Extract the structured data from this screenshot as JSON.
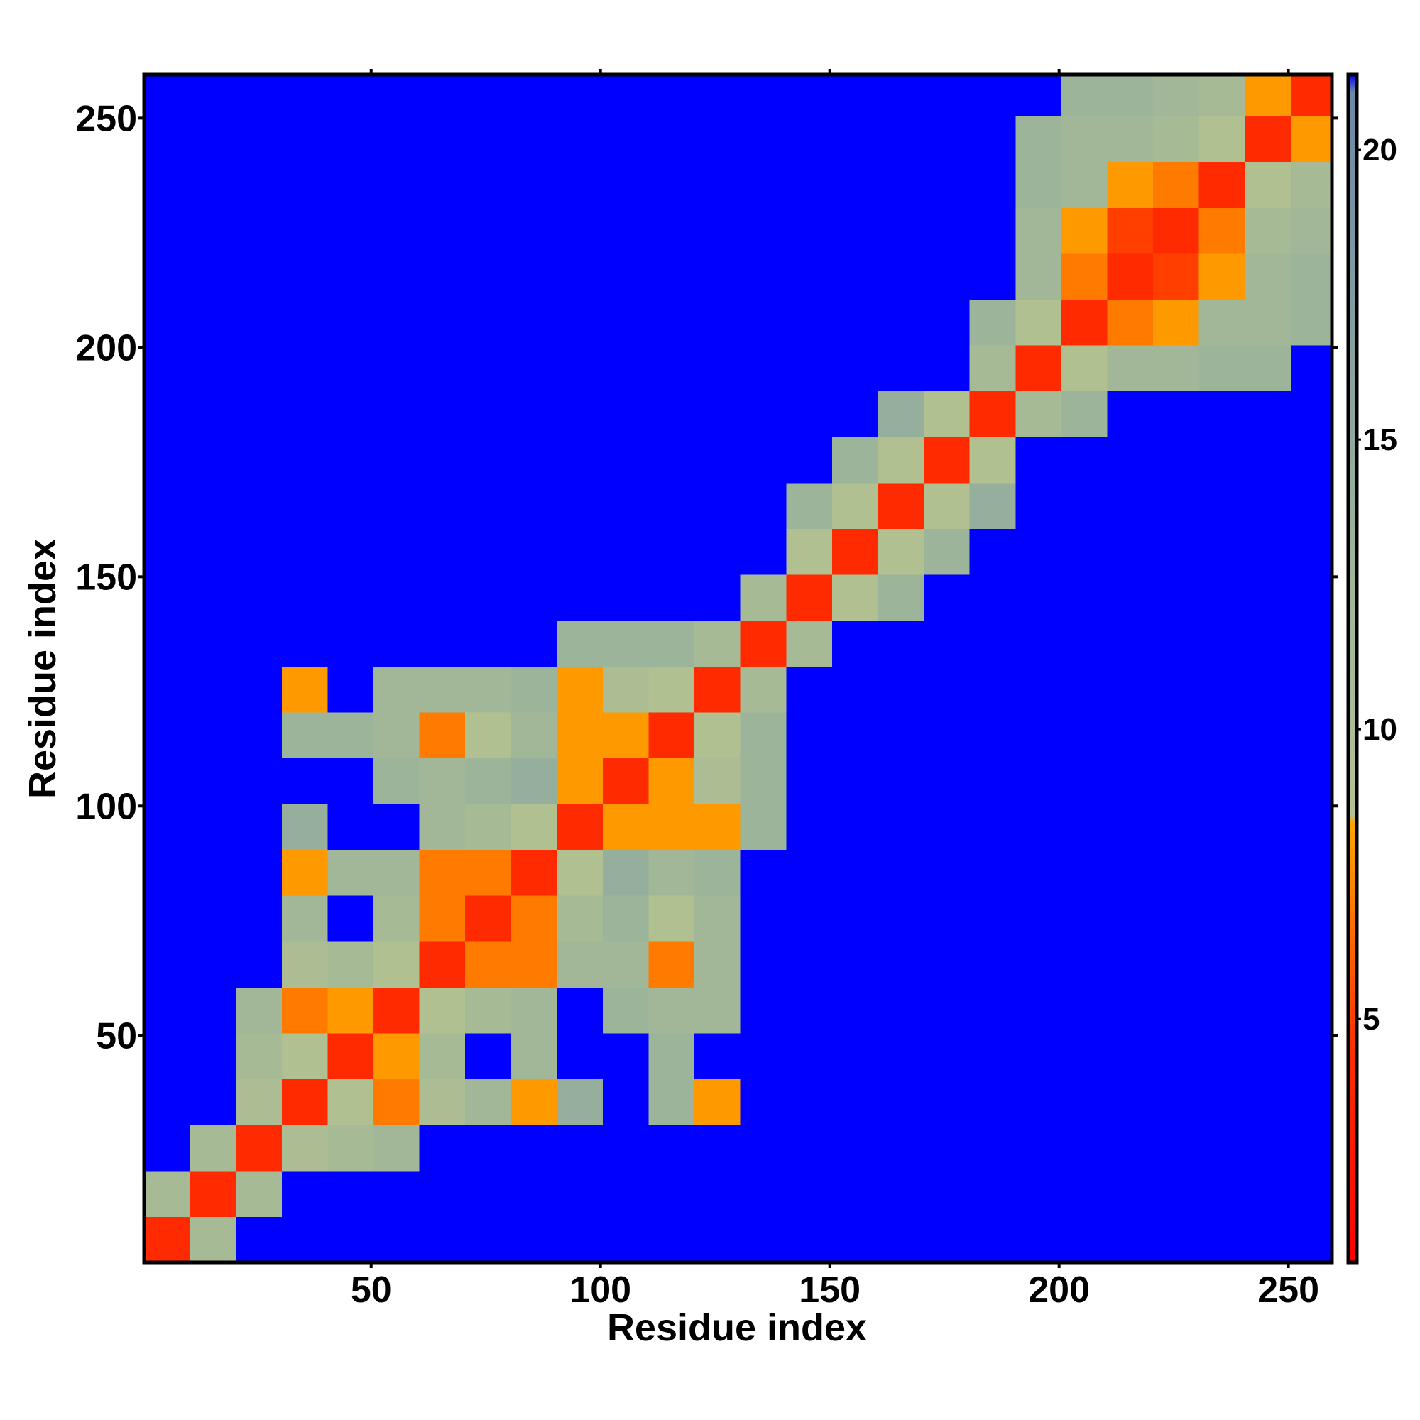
{
  "chart_data": {
    "type": "heatmap",
    "xlabel": "Residue index",
    "ylabel": "Residue index",
    "x_edges": [
      0.5,
      10.5,
      20.5,
      30.5,
      40.5,
      50.5,
      60.5,
      70.5,
      80.5,
      90.5,
      100.5,
      110.5,
      120.5,
      130.5,
      140.5,
      150.5,
      160.5,
      170.5,
      180.5,
      190.5,
      200.5,
      210.5,
      220.5,
      230.5,
      240.5,
      250.5,
      259.5
    ],
    "y_edges": [
      0.5,
      10.5,
      20.5,
      30.5,
      40.5,
      50.5,
      60.5,
      70.5,
      80.5,
      90.5,
      100.5,
      110.5,
      120.5,
      130.5,
      140.5,
      150.5,
      160.5,
      170.5,
      180.5,
      190.5,
      200.5,
      210.5,
      220.5,
      230.5,
      240.5,
      250.5,
      259.5
    ],
    "xlim": [
      0.5,
      259.5
    ],
    "ylim": [
      0.5,
      259.5
    ],
    "xticks": [
      50,
      100,
      150,
      200,
      250
    ],
    "yticks": [
      50,
      100,
      150,
      200,
      250
    ],
    "z": [
      [
        4,
        11,
        21.3,
        21.3,
        21.3,
        21.3,
        21.3,
        21.3,
        21.3,
        21.3,
        21.3,
        21.3,
        21.3,
        21.3,
        21.3,
        21.3,
        21.3,
        21.3,
        21.3,
        21.3,
        21.3,
        21.3,
        21.3,
        21.3,
        21.3,
        21.3
      ],
      [
        11,
        4,
        11,
        21.3,
        21.3,
        21.3,
        21.3,
        21.3,
        21.3,
        21.3,
        21.3,
        21.3,
        21.3,
        21.3,
        21.3,
        21.3,
        21.3,
        21.3,
        21.3,
        21.3,
        21.3,
        21.3,
        21.3,
        21.3,
        21.3,
        21.3
      ],
      [
        21.3,
        11,
        4,
        10,
        11,
        12,
        21.3,
        21.3,
        21.3,
        21.3,
        21.3,
        21.3,
        21.3,
        21.3,
        21.3,
        21.3,
        21.3,
        21.3,
        21.3,
        21.3,
        21.3,
        21.3,
        21.3,
        21.3,
        21.3,
        21.3
      ],
      [
        21.3,
        21.3,
        10,
        4,
        9,
        7,
        10,
        12,
        8,
        14,
        21.3,
        13,
        8,
        21.3,
        21.3,
        21.3,
        21.3,
        21.3,
        21.3,
        21.3,
        21.3,
        21.3,
        21.3,
        21.3,
        21.3,
        21.3
      ],
      [
        21.3,
        21.3,
        11,
        9,
        4,
        8,
        11,
        21.3,
        12,
        21.3,
        21.3,
        13,
        21.3,
        21.3,
        21.3,
        21.3,
        21.3,
        21.3,
        21.3,
        21.3,
        21.3,
        21.3,
        21.3,
        21.3,
        21.3,
        21.3
      ],
      [
        21.3,
        21.3,
        12,
        7,
        8,
        4,
        9,
        11,
        12,
        21.3,
        13,
        12,
        12,
        21.3,
        21.3,
        21.3,
        21.3,
        21.3,
        21.3,
        21.3,
        21.3,
        21.3,
        21.3,
        21.3,
        21.3,
        21.3
      ],
      [
        21.3,
        21.3,
        21.3,
        10,
        11,
        9,
        4,
        7,
        7,
        12,
        12,
        7,
        12,
        21.3,
        21.3,
        21.3,
        21.3,
        21.3,
        21.3,
        21.3,
        21.3,
        21.3,
        21.3,
        21.3,
        21.3,
        21.3
      ],
      [
        21.3,
        21.3,
        21.3,
        12,
        21.3,
        11,
        7,
        4,
        7,
        11,
        13,
        9,
        12,
        21.3,
        21.3,
        21.3,
        21.3,
        21.3,
        21.3,
        21.3,
        21.3,
        21.3,
        21.3,
        21.3,
        21.3,
        21.3
      ],
      [
        21.3,
        21.3,
        21.3,
        8,
        12,
        12,
        7,
        7,
        4,
        9,
        14,
        12,
        13,
        21.3,
        21.3,
        21.3,
        21.3,
        21.3,
        21.3,
        21.3,
        21.3,
        21.3,
        21.3,
        21.3,
        21.3,
        21.3
      ],
      [
        21.3,
        21.3,
        21.3,
        14,
        21.3,
        21.3,
        12,
        11,
        9,
        4,
        8,
        8,
        8,
        13,
        21.3,
        21.3,
        21.3,
        21.3,
        21.3,
        21.3,
        21.3,
        21.3,
        21.3,
        21.3,
        21.3,
        21.3
      ],
      [
        21.3,
        21.3,
        21.3,
        21.3,
        21.3,
        13,
        12,
        13,
        14,
        8,
        4,
        8,
        10,
        13,
        21.3,
        21.3,
        21.3,
        21.3,
        21.3,
        21.3,
        21.3,
        21.3,
        21.3,
        21.3,
        21.3,
        21.3
      ],
      [
        21.3,
        21.3,
        21.3,
        13,
        13,
        12,
        7,
        9,
        12,
        8,
        8,
        4,
        9,
        13,
        21.3,
        21.3,
        21.3,
        21.3,
        21.3,
        21.3,
        21.3,
        21.3,
        21.3,
        21.3,
        21.3,
        21.3
      ],
      [
        21.3,
        21.3,
        21.3,
        8,
        21.3,
        12,
        12,
        12,
        13,
        8,
        10,
        9,
        4,
        11,
        21.3,
        21.3,
        21.3,
        21.3,
        21.3,
        21.3,
        21.3,
        21.3,
        21.3,
        21.3,
        21.3,
        21.3
      ],
      [
        21.3,
        21.3,
        21.3,
        21.3,
        21.3,
        21.3,
        21.3,
        21.3,
        21.3,
        13,
        13,
        13,
        11,
        4,
        11,
        21.3,
        21.3,
        21.3,
        21.3,
        21.3,
        21.3,
        21.3,
        21.3,
        21.3,
        21.3,
        21.3
      ],
      [
        21.3,
        21.3,
        21.3,
        21.3,
        21.3,
        21.3,
        21.3,
        21.3,
        21.3,
        21.3,
        21.3,
        21.3,
        21.3,
        11,
        4,
        9,
        13,
        21.3,
        21.3,
        21.3,
        21.3,
        21.3,
        21.3,
        21.3,
        21.3,
        21.3
      ],
      [
        21.3,
        21.3,
        21.3,
        21.3,
        21.3,
        21.3,
        21.3,
        21.3,
        21.3,
        21.3,
        21.3,
        21.3,
        21.3,
        21.3,
        9,
        4,
        9,
        13,
        21.3,
        21.3,
        21.3,
        21.3,
        21.3,
        21.3,
        21.3,
        21.3
      ],
      [
        21.3,
        21.3,
        21.3,
        21.3,
        21.3,
        21.3,
        21.3,
        21.3,
        21.3,
        21.3,
        21.3,
        21.3,
        21.3,
        21.3,
        13,
        9,
        4,
        9,
        14,
        21.3,
        21.3,
        21.3,
        21.3,
        21.3,
        21.3,
        21.3
      ],
      [
        21.3,
        21.3,
        21.3,
        21.3,
        21.3,
        21.3,
        21.3,
        21.3,
        21.3,
        21.3,
        21.3,
        21.3,
        21.3,
        21.3,
        21.3,
        13,
        9,
        4,
        9,
        21.3,
        21.3,
        21.3,
        21.3,
        21.3,
        21.3,
        21.3
      ],
      [
        21.3,
        21.3,
        21.3,
        21.3,
        21.3,
        21.3,
        21.3,
        21.3,
        21.3,
        21.3,
        21.3,
        21.3,
        21.3,
        21.3,
        21.3,
        21.3,
        14,
        9,
        4,
        11,
        13,
        21.3,
        21.3,
        21.3,
        21.3,
        21.3
      ],
      [
        21.3,
        21.3,
        21.3,
        21.3,
        21.3,
        21.3,
        21.3,
        21.3,
        21.3,
        21.3,
        21.3,
        21.3,
        21.3,
        21.3,
        21.3,
        21.3,
        21.3,
        21.3,
        11,
        4,
        9,
        12,
        12,
        13,
        13,
        21.3
      ],
      [
        21.3,
        21.3,
        21.3,
        21.3,
        21.3,
        21.3,
        21.3,
        21.3,
        21.3,
        21.3,
        21.3,
        21.3,
        21.3,
        21.3,
        21.3,
        21.3,
        21.3,
        21.3,
        13,
        9,
        4,
        7,
        8,
        12,
        12,
        13
      ],
      [
        21.3,
        21.3,
        21.3,
        21.3,
        21.3,
        21.3,
        21.3,
        21.3,
        21.3,
        21.3,
        21.3,
        21.3,
        21.3,
        21.3,
        21.3,
        21.3,
        21.3,
        21.3,
        21.3,
        12,
        7,
        4,
        5,
        8,
        12,
        13
      ],
      [
        21.3,
        21.3,
        21.3,
        21.3,
        21.3,
        21.3,
        21.3,
        21.3,
        21.3,
        21.3,
        21.3,
        21.3,
        21.3,
        21.3,
        21.3,
        21.3,
        21.3,
        21.3,
        21.3,
        12,
        8,
        5,
        4,
        7,
        11,
        12
      ],
      [
        21.3,
        21.3,
        21.3,
        21.3,
        21.3,
        21.3,
        21.3,
        21.3,
        21.3,
        21.3,
        21.3,
        21.3,
        21.3,
        21.3,
        21.3,
        21.3,
        21.3,
        21.3,
        21.3,
        13,
        12,
        8,
        7,
        4,
        9,
        11
      ],
      [
        21.3,
        21.3,
        21.3,
        21.3,
        21.3,
        21.3,
        21.3,
        21.3,
        21.3,
        21.3,
        21.3,
        21.3,
        21.3,
        21.3,
        21.3,
        21.3,
        21.3,
        21.3,
        21.3,
        13,
        12,
        12,
        11,
        9,
        4,
        8
      ],
      [
        21.3,
        21.3,
        21.3,
        21.3,
        21.3,
        21.3,
        21.3,
        21.3,
        21.3,
        21.3,
        21.3,
        21.3,
        21.3,
        21.3,
        21.3,
        21.3,
        21.3,
        21.3,
        21.3,
        21.3,
        13,
        13,
        12,
        11,
        8,
        4
      ]
    ],
    "colorscale": [
      [
        0.8,
        "#ff0000"
      ],
      [
        4.5,
        "#ff3000"
      ],
      [
        8.4,
        "#ffa500"
      ],
      [
        8.5,
        "#b4c290"
      ],
      [
        13,
        "#9cb49a"
      ],
      [
        21,
        "#6a88a8"
      ],
      [
        21.3,
        "#0000ff"
      ]
    ],
    "clim": [
      0.8,
      21.3
    ],
    "cticks": [
      5,
      10,
      15,
      20
    ]
  }
}
